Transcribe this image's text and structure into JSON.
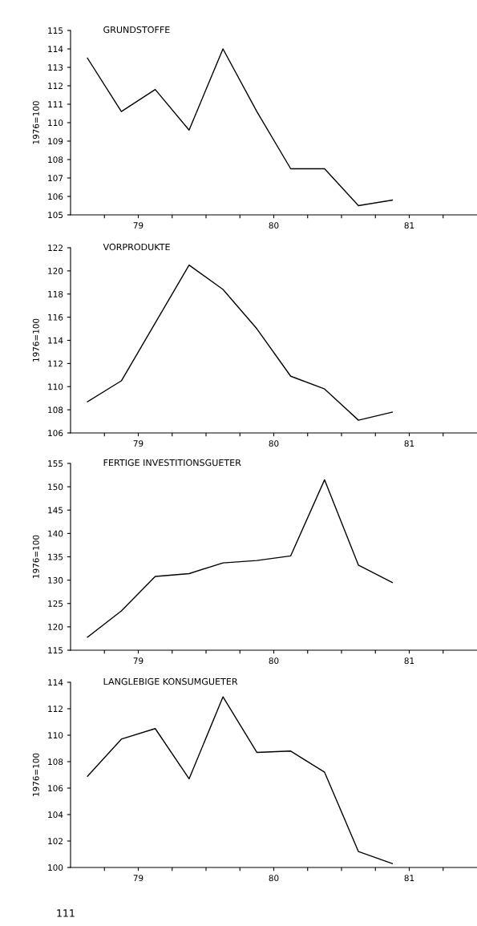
{
  "chart_data": [
    {
      "type": "line",
      "title": "GRUNDSTOFFE",
      "ylabel": "1976=100",
      "x": [
        78.625,
        78.875,
        79.125,
        79.375,
        79.625,
        79.875,
        80.125,
        80.375,
        80.625,
        80.875
      ],
      "series": [
        {
          "color": "#000000",
          "values": [
            113.5,
            110.6,
            111.8,
            109.6,
            114.0,
            110.6,
            107.5,
            107.5,
            105.5,
            105.8
          ]
        }
      ],
      "xlim": [
        78.5,
        81.5
      ],
      "xticks": [
        {
          "value": 78.75,
          "label": null
        },
        79,
        {
          "value": 79.25,
          "label": null
        },
        {
          "value": 79.5,
          "label": null
        },
        {
          "value": 79.75,
          "label": null
        },
        80,
        {
          "value": 80.25,
          "label": null
        },
        {
          "value": 80.5,
          "label": null
        },
        {
          "value": 80.75,
          "label": null
        },
        81,
        {
          "value": 81.25,
          "label": null
        }
      ],
      "ylim": [
        105,
        115
      ],
      "yticks": [
        105,
        106,
        107,
        108,
        109,
        110,
        111,
        112,
        113,
        114,
        115
      ],
      "grid": false,
      "marker": "none",
      "line_style": "solid"
    },
    {
      "type": "line",
      "title": "VORPRODUKTE",
      "ylabel": "1976=100",
      "x": [
        78.625,
        78.875,
        79.125,
        79.375,
        79.625,
        79.875,
        80.125,
        80.375,
        80.625,
        80.875
      ],
      "series": [
        {
          "color": "#000000",
          "values": [
            108.7,
            110.5,
            115.5,
            120.5,
            118.4,
            115.0,
            110.9,
            109.8,
            107.1,
            107.8
          ]
        }
      ],
      "xlim": [
        78.5,
        81.5
      ],
      "xticks": [
        {
          "value": 78.75,
          "label": null
        },
        79,
        {
          "value": 79.25,
          "label": null
        },
        {
          "value": 79.5,
          "label": null
        },
        {
          "value": 79.75,
          "label": null
        },
        80,
        {
          "value": 80.25,
          "label": null
        },
        {
          "value": 80.5,
          "label": null
        },
        {
          "value": 80.75,
          "label": null
        },
        81,
        {
          "value": 81.25,
          "label": null
        }
      ],
      "ylim": [
        106,
        122
      ],
      "yticks": [
        106,
        108,
        110,
        112,
        114,
        116,
        118,
        120,
        122
      ],
      "grid": false,
      "marker": "none",
      "line_style": "solid"
    },
    {
      "type": "line",
      "title": "FERTIGE INVESTITIONSGUETER",
      "ylabel": "1976=100",
      "x": [
        78.625,
        78.875,
        79.125,
        79.375,
        79.625,
        79.875,
        80.125,
        80.375,
        80.625,
        80.875
      ],
      "series": [
        {
          "color": "#000000",
          "values": [
            117.8,
            123.4,
            130.8,
            131.4,
            133.7,
            134.2,
            135.2,
            151.5,
            133.2,
            129.5
          ]
        }
      ],
      "xlim": [
        78.5,
        81.5
      ],
      "xticks": [
        {
          "value": 78.75,
          "label": null
        },
        79,
        {
          "value": 79.25,
          "label": null
        },
        {
          "value": 79.5,
          "label": null
        },
        {
          "value": 79.75,
          "label": null
        },
        80,
        {
          "value": 80.25,
          "label": null
        },
        {
          "value": 80.5,
          "label": null
        },
        {
          "value": 80.75,
          "label": null
        },
        81,
        {
          "value": 81.25,
          "label": null
        }
      ],
      "ylim": [
        115,
        155
      ],
      "yticks": [
        115,
        120,
        125,
        130,
        135,
        140,
        145,
        150,
        155
      ],
      "grid": false,
      "marker": "none",
      "line_style": "solid"
    },
    {
      "type": "line",
      "title": "LANGLEBIGE KONSUMGUETER",
      "ylabel": "1976=100",
      "x": [
        78.625,
        78.875,
        79.125,
        79.375,
        79.625,
        79.875,
        80.125,
        80.375,
        80.625,
        80.875
      ],
      "series": [
        {
          "color": "#000000",
          "values": [
            106.9,
            109.7,
            110.5,
            106.7,
            112.9,
            108.7,
            108.8,
            107.2,
            101.2,
            100.3
          ]
        }
      ],
      "xlim": [
        78.5,
        81.5
      ],
      "xticks": [
        {
          "value": 78.75,
          "label": null
        },
        79,
        {
          "value": 79.25,
          "label": null
        },
        {
          "value": 79.5,
          "label": null
        },
        {
          "value": 79.75,
          "label": null
        },
        80,
        {
          "value": 80.25,
          "label": null
        },
        {
          "value": 80.5,
          "label": null
        },
        {
          "value": 80.75,
          "label": null
        },
        81,
        {
          "value": 81.25,
          "label": null
        }
      ],
      "ylim": [
        100,
        114
      ],
      "yticks": [
        100,
        102,
        104,
        106,
        108,
        110,
        112,
        114
      ],
      "grid": false,
      "marker": "none",
      "line_style": "solid",
      "annotations": [
        "111"
      ]
    }
  ]
}
